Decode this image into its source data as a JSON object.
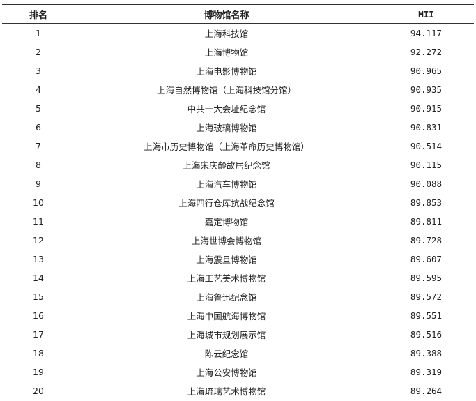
{
  "table": {
    "headers": [
      "排名",
      "博物馆名称",
      "MII"
    ],
    "rows": [
      [
        "1",
        "上海科技馆",
        "94.117"
      ],
      [
        "2",
        "上海博物馆",
        "92.272"
      ],
      [
        "3",
        "上海电影博物馆",
        "90.965"
      ],
      [
        "4",
        "上海自然博物馆（上海科技馆分馆）",
        "90.935"
      ],
      [
        "5",
        "中共一大会址纪念馆",
        "90.915"
      ],
      [
        "6",
        "上海玻璃博物馆",
        "90.831"
      ],
      [
        "7",
        "上海市历史博物馆（上海革命历史博物馆）",
        "90.514"
      ],
      [
        "8",
        "上海宋庆龄故居纪念馆",
        "90.115"
      ],
      [
        "9",
        "上海汽车博物馆",
        "90.088"
      ],
      [
        "10",
        "上海四行仓库抗战纪念馆",
        "89.853"
      ],
      [
        "11",
        "嘉定博物馆",
        "89.811"
      ],
      [
        "12",
        "上海世博会博物馆",
        "89.728"
      ],
      [
        "13",
        "上海震旦博物馆",
        "89.607"
      ],
      [
        "14",
        "上海工艺美术博物馆",
        "89.595"
      ],
      [
        "15",
        "上海鲁迅纪念馆",
        "89.572"
      ],
      [
        "16",
        "上海中国航海博物馆",
        "89.551"
      ],
      [
        "17",
        "上海城市规划展示馆",
        "89.516"
      ],
      [
        "18",
        "陈云纪念馆",
        "89.388"
      ],
      [
        "19",
        "上海公安博物馆",
        "89.319"
      ],
      [
        "20",
        "上海琉璃艺术博物馆",
        "89.264"
      ]
    ]
  }
}
